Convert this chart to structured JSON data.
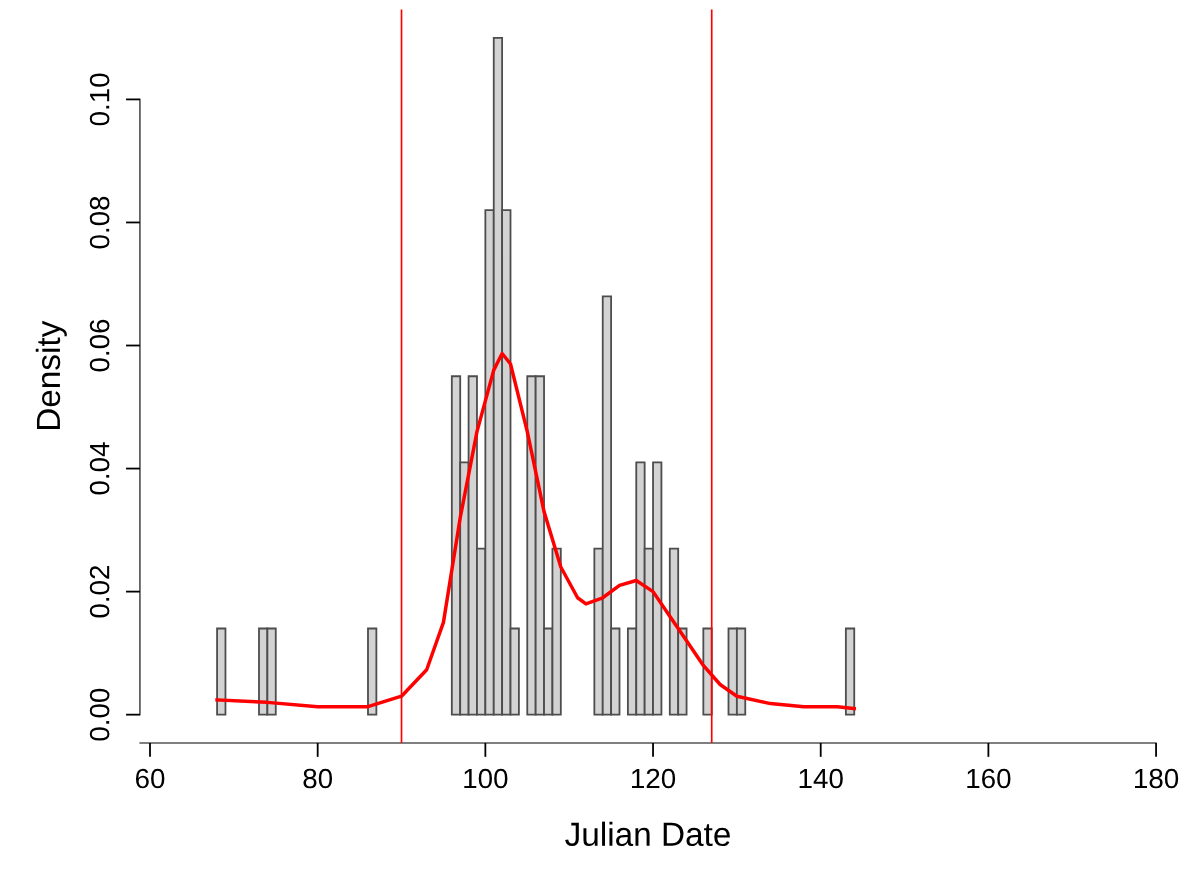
{
  "chart_data": {
    "type": "histogram",
    "xlabel": "Julian Date",
    "ylabel": "Density",
    "bins": [
      68,
      69,
      70,
      71,
      72,
      73,
      74,
      75,
      76,
      77,
      78,
      79,
      80,
      81,
      82,
      83,
      84,
      85,
      86,
      87,
      88,
      89,
      90,
      91,
      92,
      93,
      94,
      95,
      96,
      97,
      98,
      99,
      100,
      101,
      102,
      103,
      104,
      105,
      106,
      107,
      108,
      109,
      110,
      111,
      112,
      113,
      114,
      115,
      116,
      117,
      118,
      119,
      120,
      121,
      122,
      123,
      124,
      125,
      126,
      127,
      128,
      129,
      130,
      131,
      132,
      133,
      134,
      135,
      136,
      137,
      138,
      139,
      140,
      141,
      142,
      143,
      144
    ],
    "series": [
      {
        "color": "#d3d3d3",
        "values": [
          0.014,
          0,
          0,
          0,
          0,
          0.014,
          0.014,
          0,
          0,
          0,
          0,
          0,
          0,
          0,
          0,
          0,
          0,
          0,
          0.014,
          0,
          0,
          0,
          0,
          0,
          0,
          0,
          0,
          0,
          0.055,
          0.041,
          0.055,
          0.027,
          0.082,
          0.11,
          0.082,
          0.014,
          0,
          0.055,
          0.055,
          0.014,
          0.027,
          0,
          0,
          0,
          0,
          0.027,
          0.068,
          0.014,
          0,
          0.014,
          0.041,
          0.027,
          0.041,
          0,
          0.027,
          0.014,
          0,
          0,
          0.014,
          0,
          0,
          0.014,
          0.014,
          0,
          0,
          0,
          0,
          0,
          0,
          0,
          0,
          0,
          0,
          0,
          0,
          0.014
        ]
      },
      {
        "type": "line",
        "color": "#ff0000",
        "x": [
          68,
          74,
          80,
          86,
          90,
          93,
          95,
          97,
          99,
          101,
          102,
          103,
          105,
          107,
          109,
          111,
          112,
          114,
          116,
          118,
          120,
          122,
          124,
          126,
          128,
          130,
          134,
          138,
          142,
          144
        ],
        "values": [
          0.0024,
          0.002,
          0.0013,
          0.0013,
          0.003,
          0.0073,
          0.015,
          0.032,
          0.046,
          0.056,
          0.0587,
          0.057,
          0.046,
          0.033,
          0.024,
          0.019,
          0.018,
          0.019,
          0.021,
          0.0218,
          0.02,
          0.016,
          0.012,
          0.008,
          0.0049,
          0.003,
          0.0018,
          0.0013,
          0.0013,
          0.001
        ]
      }
    ],
    "ref_lines": [
      {
        "axis": "x",
        "value": 90,
        "color": "#ff0000"
      },
      {
        "axis": "x",
        "value": 127,
        "color": "#ff0000"
      }
    ],
    "xlim": [
      58.8,
      180
    ],
    "ylim": [
      -0.0046,
      0.1146
    ],
    "xticks": [
      60,
      80,
      100,
      120,
      140,
      160,
      180
    ],
    "yticks": [
      {
        "value": 0,
        "label": "0.00"
      },
      {
        "value": 0.02,
        "label": "0.02"
      },
      {
        "value": 0.04,
        "label": "0.04"
      },
      {
        "value": 0.06,
        "label": "0.06"
      },
      {
        "value": 0.08,
        "label": "0.08"
      },
      {
        "value": 0.1,
        "label": "0.10"
      }
    ],
    "grid": false
  }
}
